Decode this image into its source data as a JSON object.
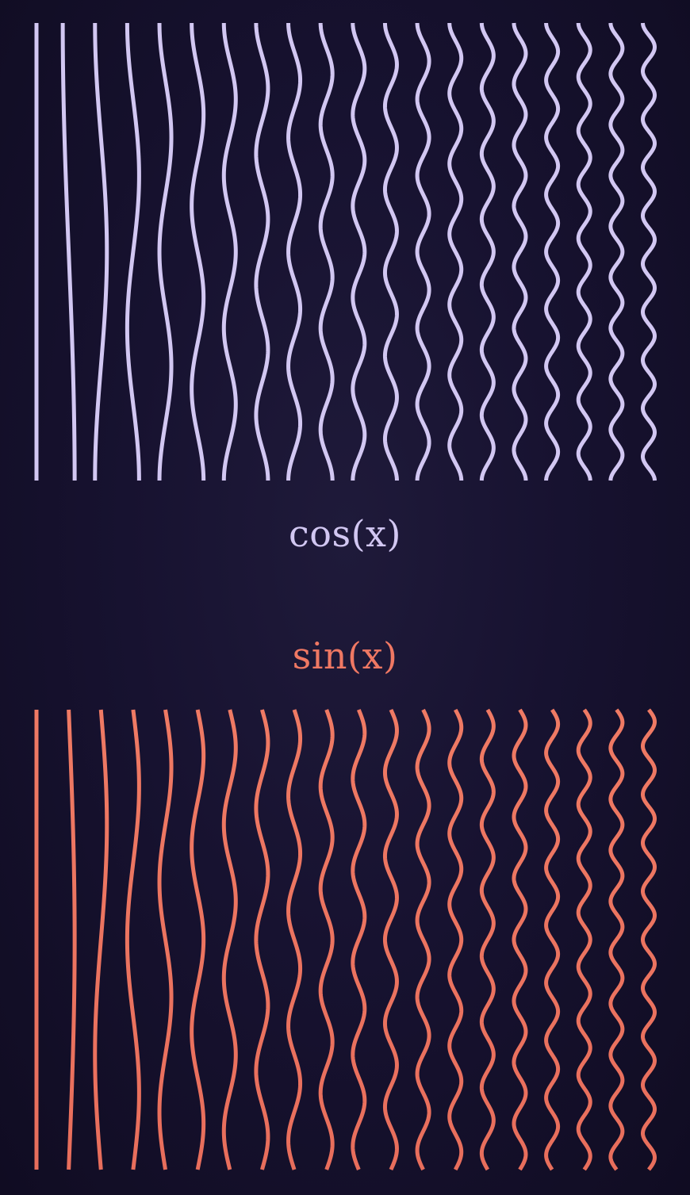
{
  "colors": {
    "background": "#141026",
    "cosine": "#d2c7f2",
    "sine": "#ef7863"
  },
  "labels": {
    "cosine": "cos(x)",
    "sine": "sin(x)"
  },
  "diagram": {
    "line_count": 20,
    "frequencies": [
      0,
      1,
      2,
      3,
      4,
      5,
      6,
      7,
      8,
      9,
      10,
      11,
      12,
      13,
      14,
      15,
      16,
      17,
      18,
      19
    ]
  }
}
